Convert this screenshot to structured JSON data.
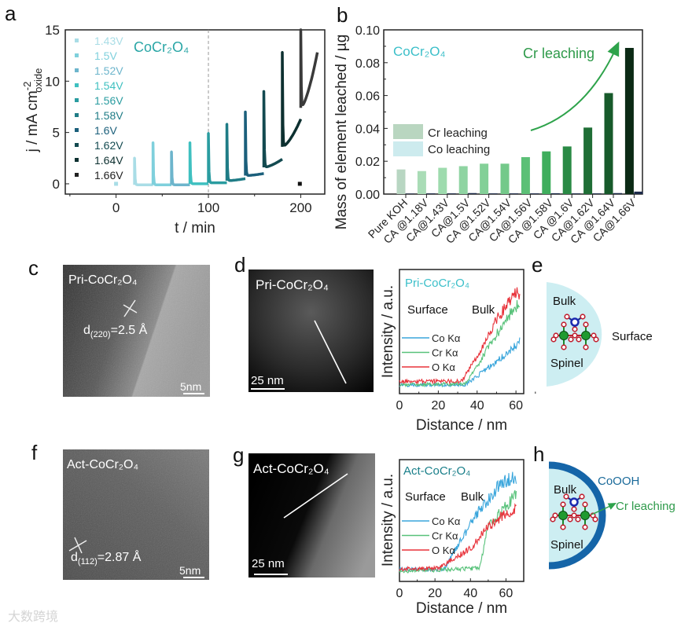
{
  "panel_letters": {
    "a": "a",
    "b": "b",
    "c": "c",
    "d": "d",
    "e": "e",
    "f": "f",
    "g": "g",
    "h": "h"
  },
  "watermark": "大数跨境",
  "chart_data": [
    {
      "panel": "a",
      "type": "line",
      "title": "CoCr₂O₄",
      "xlabel": "t / min",
      "ylabel": {
        "base": "j / mA cm",
        "sup": "-2",
        "sub": "oxide"
      },
      "xlim": [
        -55,
        226
      ],
      "ylim": [
        -1,
        15
      ],
      "xticks": [
        "0",
        "100",
        "200"
      ],
      "yticks": [
        "0",
        "5",
        "10",
        "15"
      ],
      "xtick_values": [
        0,
        100,
        200
      ],
      "ytick_values": [
        0,
        5,
        10,
        15
      ],
      "dashed_marker_t": 100,
      "legend": [
        {
          "label": "1.43V",
          "color": "#a9dde6"
        },
        {
          "label": "1.5V",
          "color": "#7fd0dc"
        },
        {
          "label": "1.52V",
          "color": "#6db5cc"
        },
        {
          "label": "1.54V",
          "color": "#3fc0c0"
        },
        {
          "label": "1.56V",
          "color": "#2a9ca0"
        },
        {
          "label": "1.58V",
          "color": "#1f7c86"
        },
        {
          "label": "1.6V",
          "color": "#1b5f7b"
        },
        {
          "label": "1.62V",
          "color": "#134a50"
        },
        {
          "label": "1.64V",
          "color": "#0d3030"
        },
        {
          "label": "1.66V",
          "color": "#222222"
        }
      ],
      "points": [
        {
          "t": 0,
          "j": 0,
          "color": "#a9dde6"
        },
        {
          "t": 199,
          "j": 0,
          "color": "#111111"
        }
      ],
      "segments": [
        {
          "t0": 20,
          "t1": 40,
          "peak": 2.5,
          "min": -0.1,
          "end": -0.1,
          "color": "#a9dde6"
        },
        {
          "t0": 40,
          "t1": 60,
          "peak": 4.0,
          "min": -0.1,
          "end": -0.1,
          "color": "#7fd0dc"
        },
        {
          "t0": 60,
          "t1": 80,
          "peak": 3.1,
          "min": -0.1,
          "end": -0.1,
          "color": "#6db5cc"
        },
        {
          "t0": 80,
          "t1": 100,
          "peak": 4.0,
          "min": 0.0,
          "end": 0.0,
          "color": "#3fc0c0"
        },
        {
          "t0": 100,
          "t1": 120,
          "peak": 4.9,
          "min": 0.1,
          "end": 0.1,
          "color": "#2a9ca0"
        },
        {
          "t0": 120,
          "t1": 140,
          "peak": 5.8,
          "min": 0.3,
          "end": 0.5,
          "color": "#1f7c86"
        },
        {
          "t0": 140,
          "t1": 160,
          "peak": 7.0,
          "min": 0.8,
          "end": 1.0,
          "color": "#1b5f7b"
        },
        {
          "t0": 160,
          "t1": 180,
          "peak": 9.0,
          "min": 1.6,
          "end": 2.4,
          "color": "#134a50"
        },
        {
          "t0": 180,
          "t1": 200,
          "peak": 12.8,
          "min": 3.6,
          "end": 6.3,
          "color": "#0d3030"
        },
        {
          "t0": 200,
          "t1": 218,
          "peak": 15.0,
          "min": 7.4,
          "end": 12.8,
          "color": "#3a3a3a"
        }
      ]
    },
    {
      "panel": "b",
      "type": "bar",
      "title": "CoCr₂O₄",
      "annotation": "Cr leaching",
      "ylabel": "Mass of element leached / µg",
      "ylim": [
        0,
        0.1
      ],
      "yticks": [
        "0.00",
        "0.02",
        "0.04",
        "0.06",
        "0.08",
        "0.10"
      ],
      "ytick_values": [
        0,
        0.02,
        0.04,
        0.06,
        0.08,
        0.1
      ],
      "categories": [
        "Pure KOH",
        "CA @1.18V",
        "CA@1.43V",
        "CA@1.5V",
        "CA @1.52V",
        "CA@1.54V",
        "CA@1.56V",
        "CA @1.58V",
        "CA @1.6V",
        "CA@1.62V",
        "CA @1.64V",
        "CA@1.66V"
      ],
      "series": [
        {
          "name": "Cr leaching",
          "legend_color": "#b9d6c0",
          "values": [
            0.015,
            0.014,
            0.016,
            0.017,
            0.0185,
            0.0185,
            0.0225,
            0.026,
            0.029,
            0.0405,
            0.0615,
            0.089
          ],
          "colors": [
            "#b8d6c2",
            "#a9dcb6",
            "#9edbae",
            "#8fd4a2",
            "#83d098",
            "#74c98a",
            "#5cc077",
            "#3fae5d",
            "#2a8a45",
            "#1f6e36",
            "#175a2b",
            "#0b2a15"
          ]
        },
        {
          "name": "Co leaching",
          "legend_color": "#cdebee",
          "values": [
            0.0003,
            0.0004,
            0.0004,
            0.0006,
            0.0004,
            0.0004,
            0.0004,
            0.0005,
            0.0004,
            0.0004,
            0.0006,
            0.0015
          ],
          "colors": [
            "#1c2a4a"
          ]
        }
      ],
      "legend_position": "center-left"
    },
    {
      "panel": "d",
      "type": "line",
      "title": "Pri-CoCr₂O₄",
      "xlabel": "Distance / nm",
      "ylabel": "Intensity / a.u.",
      "region_labels": [
        "Surface",
        "Bulk"
      ],
      "xlim": [
        0,
        64
      ],
      "ylim": [
        0,
        1
      ],
      "xticks": [
        "0",
        "20",
        "40",
        "60"
      ],
      "xtick_values": [
        0,
        20,
        40,
        60
      ],
      "x_end": 62,
      "series": [
        {
          "name": "Co Kα",
          "color": "#3aa6dc",
          "anchors": [
            [
              0,
              0.07
            ],
            [
              34,
              0.07
            ],
            [
              45,
              0.2
            ],
            [
              55,
              0.32
            ],
            [
              62,
              0.42
            ]
          ]
        },
        {
          "name": "Cr Kα",
          "color": "#58c27a",
          "anchors": [
            [
              0,
              0.07
            ],
            [
              34,
              0.08
            ],
            [
              45,
              0.35
            ],
            [
              55,
              0.6
            ],
            [
              62,
              0.74
            ]
          ]
        },
        {
          "name": "O Kα",
          "color": "#e8323a",
          "anchors": [
            [
              0,
              0.1
            ],
            [
              32,
              0.1
            ],
            [
              40,
              0.3
            ],
            [
              50,
              0.6
            ],
            [
              60,
              0.82
            ],
            [
              62,
              0.8
            ]
          ]
        }
      ]
    },
    {
      "panel": "g",
      "type": "line",
      "title": "Act-CoCr₂O₄",
      "xlabel": "Distance / nm",
      "ylabel": "Intensity / a.u.",
      "region_labels": [
        "Surface",
        "Bulk"
      ],
      "xlim": [
        0,
        70
      ],
      "ylim": [
        0,
        1
      ],
      "xticks": [
        "0",
        "20",
        "40",
        "60"
      ],
      "xtick_values": [
        0,
        20,
        40,
        60
      ],
      "x_end": 66,
      "series": [
        {
          "name": "Co Kα",
          "color": "#3aa6dc",
          "anchors": [
            [
              0,
              0.1
            ],
            [
              25,
              0.1
            ],
            [
              35,
              0.35
            ],
            [
              45,
              0.58
            ],
            [
              58,
              0.82
            ],
            [
              66,
              0.86
            ]
          ]
        },
        {
          "name": "Cr Kα",
          "color": "#58c27a",
          "anchors": [
            [
              0,
              0.08
            ],
            [
              45,
              0.11
            ],
            [
              50,
              0.45
            ],
            [
              60,
              0.62
            ],
            [
              66,
              0.72
            ]
          ]
        },
        {
          "name": "O Kα",
          "color": "#e8323a",
          "anchors": [
            [
              0,
              0.1
            ],
            [
              22,
              0.11
            ],
            [
              40,
              0.27
            ],
            [
              50,
              0.45
            ],
            [
              60,
              0.56
            ],
            [
              66,
              0.6
            ]
          ]
        }
      ]
    }
  ],
  "images": {
    "c": {
      "sample": "Pri-CoCr₂O₄",
      "d_symbol": "d",
      "d_plane": "(220)",
      "d_value": "=2.5 Å",
      "scale": "5nm"
    },
    "d": {
      "sample": "Pri-CoCr₂O₄",
      "scale": "25 nm"
    },
    "f": {
      "sample": "Act-CoCr₂O₄",
      "d_symbol": "d",
      "d_plane": "(112)",
      "d_value": "=2.87 Å",
      "scale": "5nm"
    },
    "g": {
      "sample": "Act-CoCr₂O₄",
      "scale": "25 nm"
    }
  },
  "schematic_e": {
    "bulk": "Bulk",
    "spinel": "Spinel",
    "surface": "Surface",
    "fill": "#cdeef2"
  },
  "schematic_h": {
    "bulk": "Bulk",
    "spinel": "Spinel",
    "shell": "CoOOH",
    "leaching": "Cr leaching",
    "shell_color": "#1565a8"
  }
}
